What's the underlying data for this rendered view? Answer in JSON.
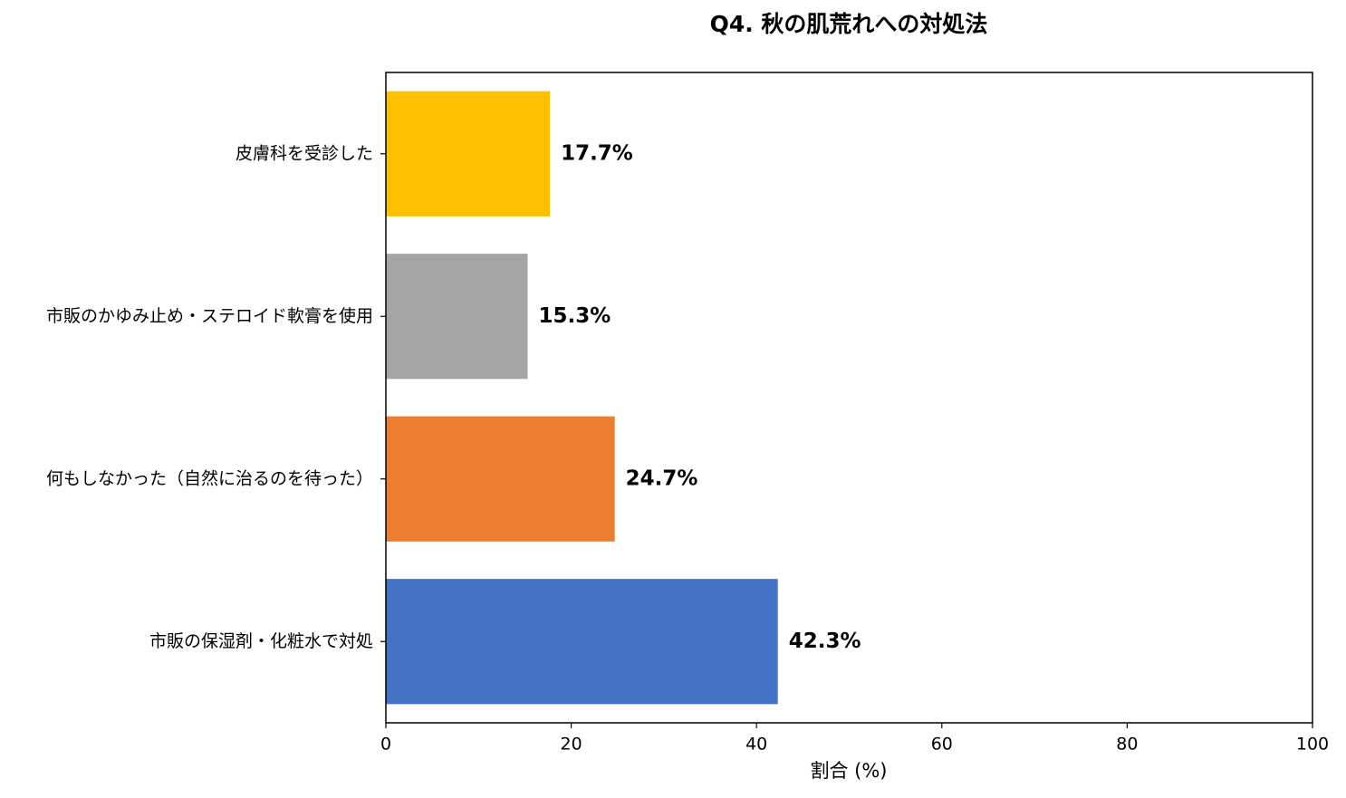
{
  "chart_data": {
    "type": "barh",
    "title": "Q4. 秋の肌荒れへの対処法",
    "categories": [
      "皮膚科を受診した",
      "市販のかゆみ止め・ステロイド軟膏を使用",
      "何もしなかった（自然に治るのを待った）",
      "市販の保湿剤・化粧水で対処"
    ],
    "values": [
      17.7,
      15.3,
      24.7,
      42.3
    ],
    "value_labels": [
      "17.7%",
      "15.3%",
      "24.7%",
      "42.3%"
    ],
    "colors": [
      "#ffc000",
      "#a5a5a5",
      "#ed7d31",
      "#4472c4"
    ],
    "xlabel": "割合 (%)",
    "xlim": [
      0,
      100
    ],
    "xticks": [
      0,
      20,
      40,
      60,
      80,
      100
    ],
    "grid": false
  }
}
